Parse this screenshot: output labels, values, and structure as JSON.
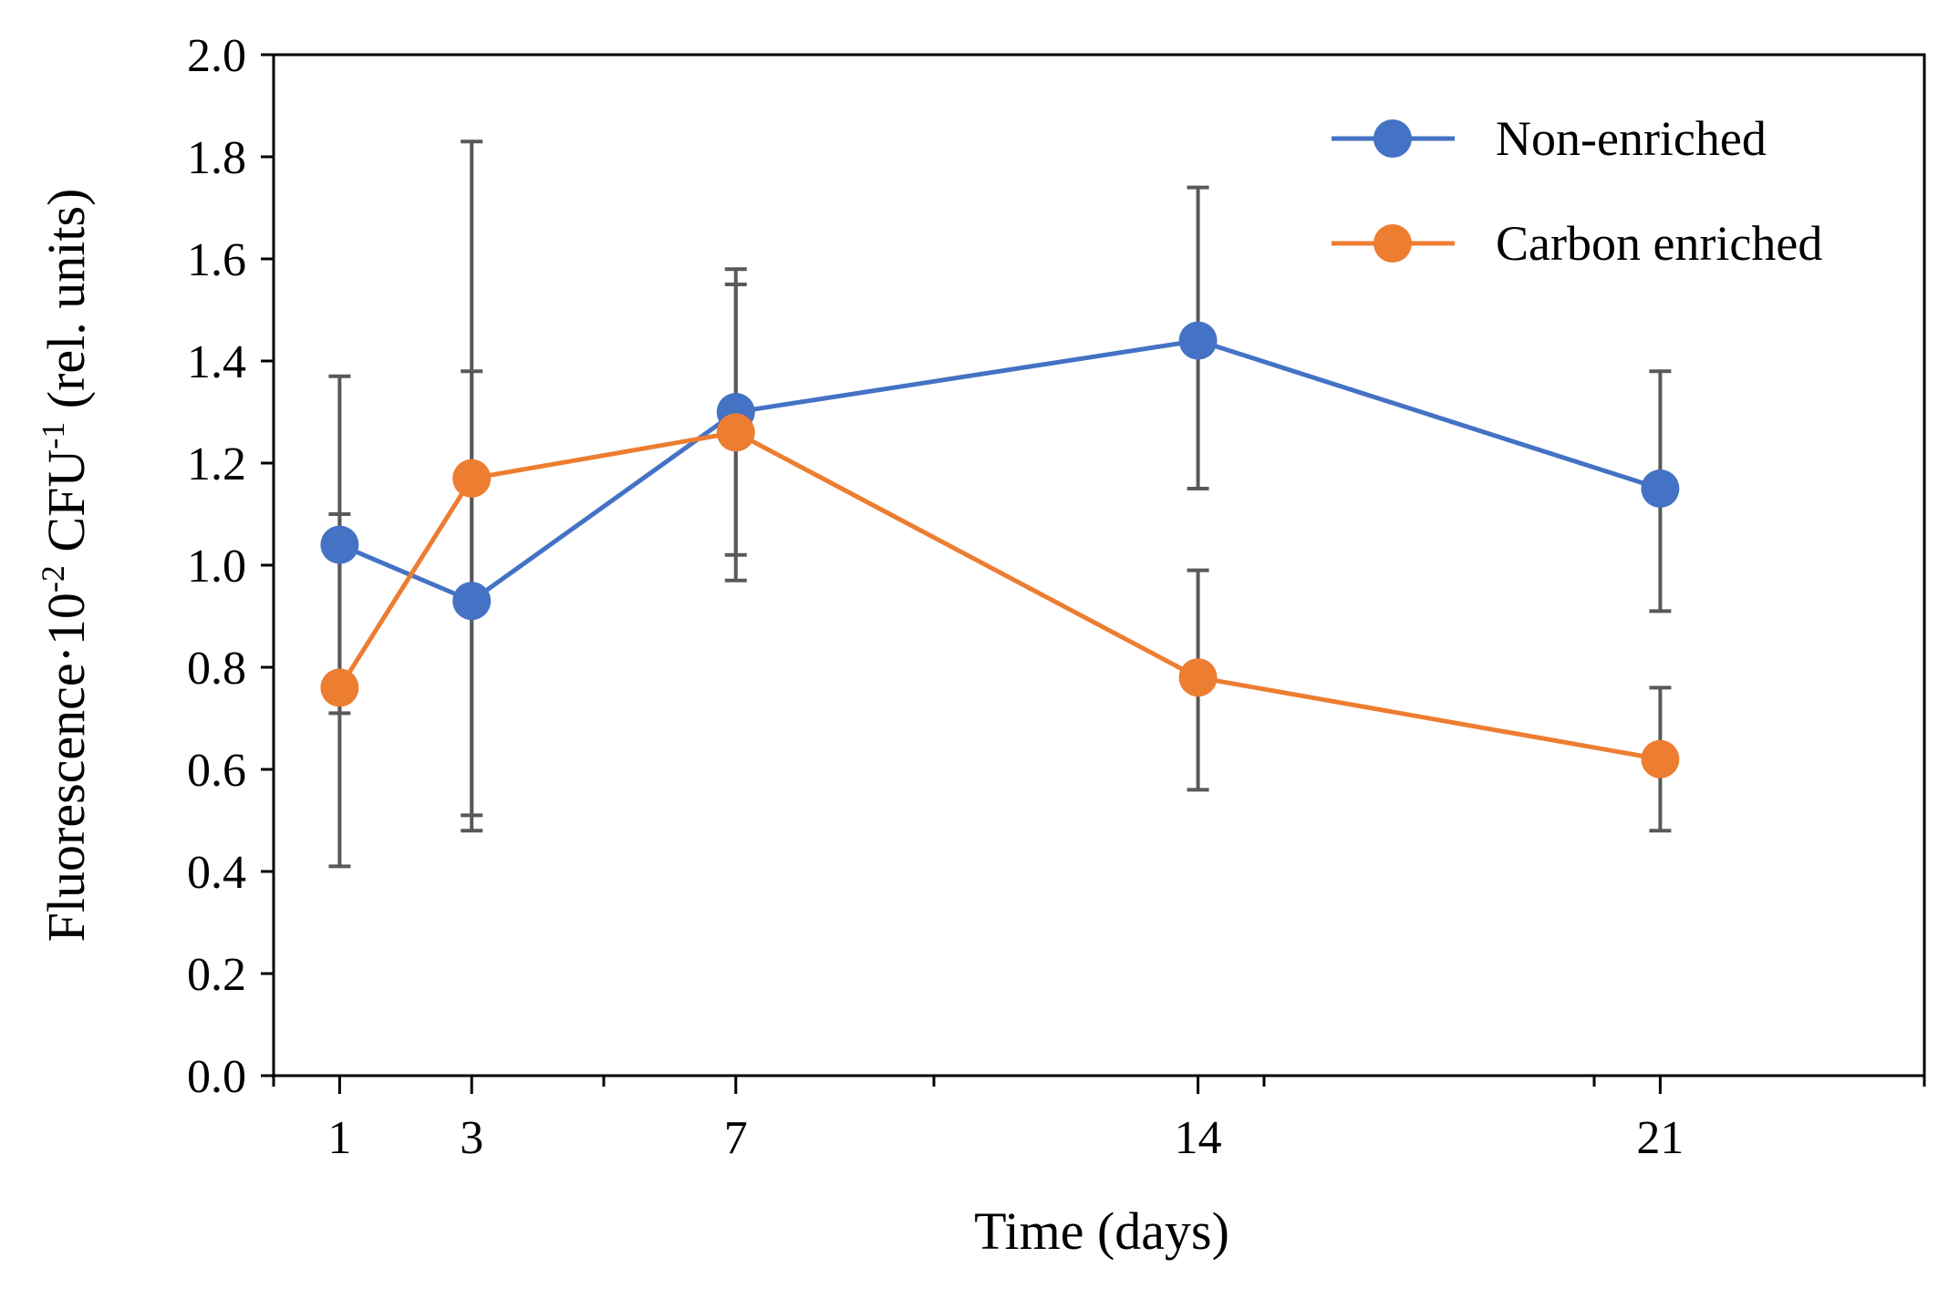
{
  "chart_data": {
    "type": "line",
    "title": "",
    "xlabel": "Time (days)",
    "ylabel": {
      "prefix": "Fluorescence·10",
      "sup1": "-2",
      "middle": " CFU",
      "sup2": "-1",
      "suffix": " (rel. units)"
    },
    "x": [
      1,
      3,
      7,
      14,
      21
    ],
    "xlim": [
      0,
      25
    ],
    "x_ticks": [
      "1",
      "3",
      "7",
      "14",
      "21"
    ],
    "ylim": [
      0,
      2.0
    ],
    "y_ticks": [
      "0.0",
      "0.2",
      "0.4",
      "0.6",
      "0.8",
      "1.0",
      "1.2",
      "1.4",
      "1.6",
      "1.8",
      "2.0"
    ],
    "grid": false,
    "legend_position": "top-right",
    "series": [
      {
        "name": "Non-enriched",
        "color": "#4472C4",
        "values": [
          1.04,
          0.93,
          1.3,
          1.44,
          1.15
        ],
        "error_low": [
          0.71,
          0.51,
          1.02,
          1.15,
          0.91
        ],
        "error_high": [
          1.37,
          1.83,
          1.58,
          1.74,
          1.38
        ]
      },
      {
        "name": "Carbon enriched",
        "color": "#ED7D31",
        "values": [
          0.76,
          1.17,
          1.26,
          0.78,
          0.62
        ],
        "error_low": [
          0.41,
          0.48,
          0.97,
          0.56,
          0.48
        ],
        "error_high": [
          1.1,
          1.38,
          1.55,
          0.99,
          0.76
        ]
      }
    ],
    "errorbar_color": "#595959"
  }
}
